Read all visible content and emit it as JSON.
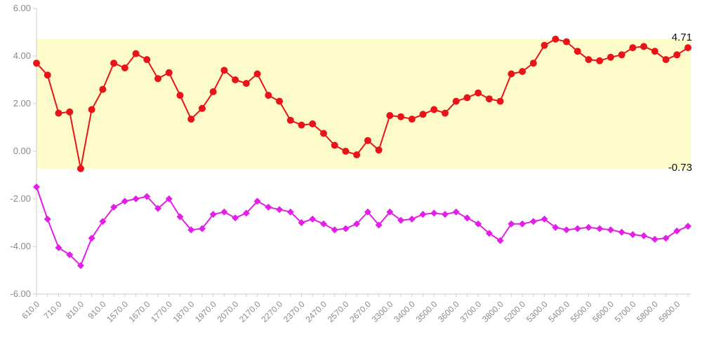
{
  "chart_data": {
    "type": "line",
    "title": "",
    "xlabel": "",
    "ylabel": "",
    "ylim": [
      -6,
      6
    ],
    "y_ticks": [
      "6.00",
      "4.00",
      "2.00",
      "0.00",
      "-2.00",
      "-4.00",
      "-6.00"
    ],
    "x_tick_labels": [
      "610.0",
      "710.0",
      "810.0",
      "910.0",
      "1570.0",
      "1670.0",
      "1770.0",
      "1870.0",
      "1970.0",
      "2070.0",
      "2170.0",
      "2270.0",
      "2370.0",
      "2470.0",
      "2570.0",
      "2670.0",
      "3300.0",
      "3400.0",
      "3500.0",
      "3600.0",
      "3700.0",
      "3800.0",
      "5200.0",
      "5300.0",
      "5400.0",
      "5500.0",
      "5600.0",
      "5700.0",
      "5800.0",
      "5900.0"
    ],
    "grid": false,
    "band": {
      "min": -0.73,
      "max": 4.71,
      "min_label": "-0.73",
      "max_label": "4.71",
      "color": "#fdfbc9"
    },
    "series": [
      {
        "color": "#e8141a",
        "marker": "circle",
        "values": [
          3.7,
          3.2,
          1.6,
          1.65,
          -0.73,
          1.75,
          2.6,
          3.7,
          3.5,
          4.1,
          3.85,
          3.05,
          3.3,
          2.35,
          1.35,
          1.8,
          2.5,
          3.4,
          3.0,
          2.85,
          3.25,
          2.35,
          2.1,
          1.3,
          1.1,
          1.15,
          0.75,
          0.25,
          0.0,
          -0.15,
          0.45,
          0.05,
          1.5,
          1.45,
          1.35,
          1.55,
          1.75,
          1.6,
          2.1,
          2.25,
          2.45,
          2.2,
          2.1,
          3.25,
          3.35,
          3.7,
          4.45,
          4.71,
          4.6,
          4.2,
          3.85,
          3.8,
          3.95,
          4.05,
          4.35,
          4.4,
          4.2,
          3.85,
          4.05,
          4.35
        ]
      },
      {
        "color": "#e21ee8",
        "marker": "diamond",
        "values": [
          -1.5,
          -2.85,
          -4.05,
          -4.35,
          -4.8,
          -3.65,
          -2.95,
          -2.35,
          -2.1,
          -2.0,
          -1.9,
          -2.4,
          -2.0,
          -2.75,
          -3.3,
          -3.25,
          -2.65,
          -2.55,
          -2.8,
          -2.6,
          -2.1,
          -2.35,
          -2.45,
          -2.55,
          -3.0,
          -2.85,
          -3.05,
          -3.3,
          -3.25,
          -3.05,
          -2.55,
          -3.1,
          -2.55,
          -2.9,
          -2.85,
          -2.65,
          -2.6,
          -2.65,
          -2.55,
          -2.8,
          -3.05,
          -3.45,
          -3.75,
          -3.05,
          -3.05,
          -2.95,
          -2.85,
          -3.2,
          -3.3,
          -3.25,
          -3.2,
          -3.25,
          -3.3,
          -3.4,
          -3.5,
          -3.55,
          -3.7,
          -3.65,
          -3.35,
          -3.15
        ]
      }
    ]
  }
}
